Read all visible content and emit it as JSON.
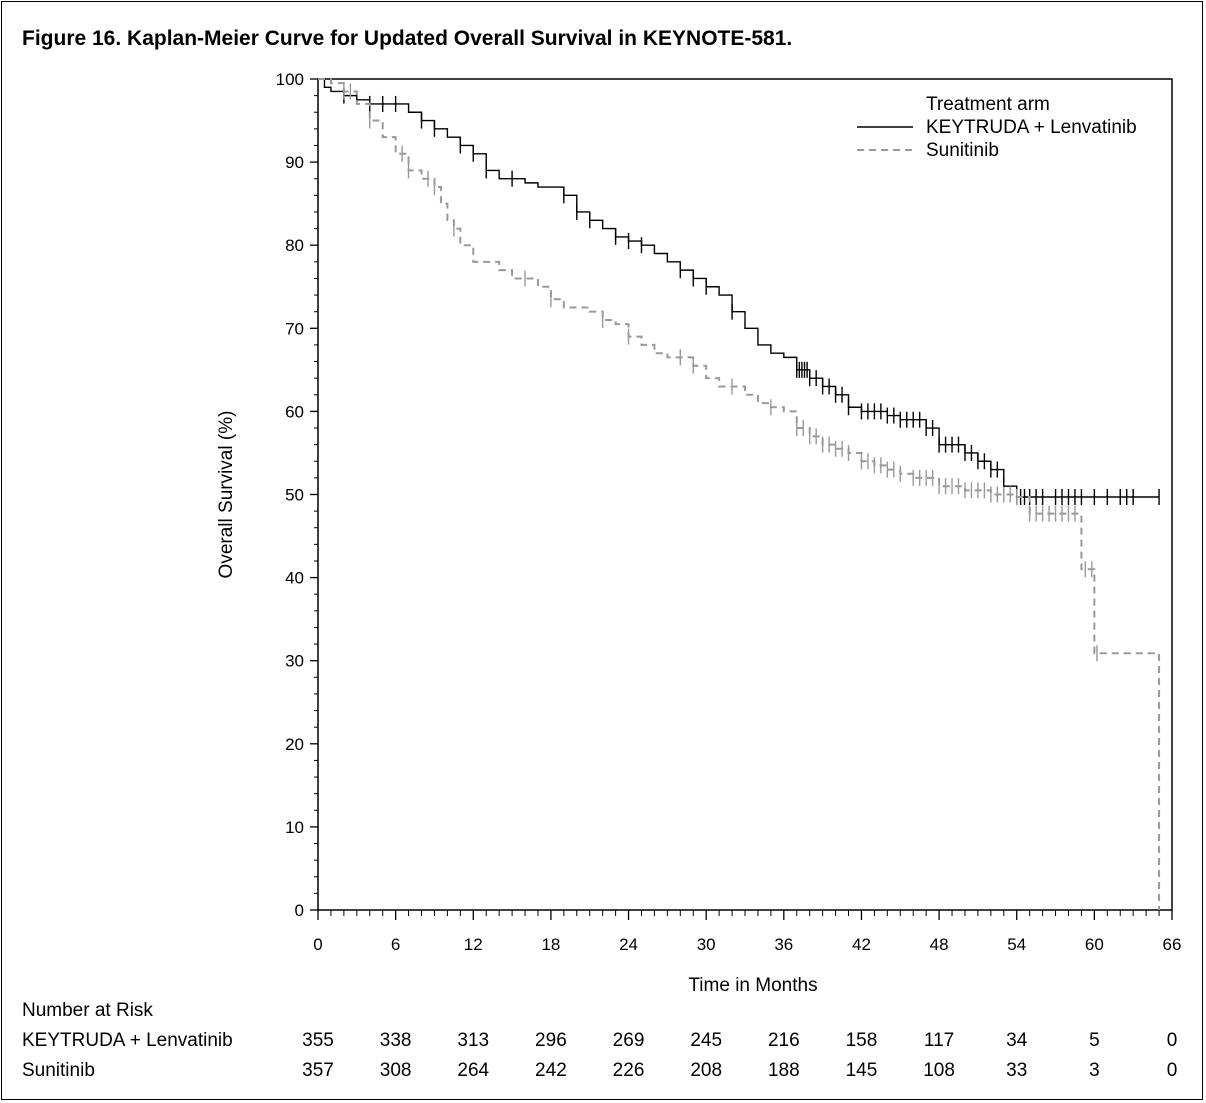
{
  "title": "Figure 16. Kaplan-Meier Curve for Updated Overall Survival in KEYNOTE-581.",
  "chart_data": {
    "type": "line",
    "title": "Figure 16. Kaplan-Meier Curve for Updated Overall Survival in KEYNOTE-581.",
    "xlabel": "Time in Months",
    "ylabel": "Overall Survival (%)",
    "xlim": [
      0,
      66
    ],
    "ylim": [
      0,
      100
    ],
    "x_ticks": [
      "0",
      "6",
      "12",
      "18",
      "24",
      "30",
      "36",
      "42",
      "48",
      "54",
      "60",
      "66"
    ],
    "y_ticks": [
      "0",
      "10",
      "20",
      "30",
      "40",
      "50",
      "60",
      "70",
      "80",
      "90",
      "100"
    ],
    "grid": false,
    "legend": {
      "title": "Treatment arm",
      "placement": "top-right"
    },
    "series": [
      {
        "name": "KEYTRUDA + Lenvatinib",
        "color": "#000000",
        "style": "solid",
        "step_points": [
          [
            0,
            100
          ],
          [
            0.5,
            99
          ],
          [
            1,
            98.5
          ],
          [
            2,
            98
          ],
          [
            3,
            97.5
          ],
          [
            4,
            97
          ],
          [
            6,
            97
          ],
          [
            7,
            96
          ],
          [
            8,
            95
          ],
          [
            9,
            94
          ],
          [
            10,
            93
          ],
          [
            11,
            92
          ],
          [
            12,
            91
          ],
          [
            13,
            89
          ],
          [
            14,
            88
          ],
          [
            16,
            87.5
          ],
          [
            17,
            87
          ],
          [
            19,
            86
          ],
          [
            20,
            84
          ],
          [
            21,
            83
          ],
          [
            22,
            82
          ],
          [
            23,
            81
          ],
          [
            24,
            80.5
          ],
          [
            25,
            80
          ],
          [
            26,
            79
          ],
          [
            27,
            78
          ],
          [
            28,
            77
          ],
          [
            29,
            76
          ],
          [
            30,
            75
          ],
          [
            31,
            74
          ],
          [
            32,
            72
          ],
          [
            33,
            70
          ],
          [
            34,
            68
          ],
          [
            35,
            67
          ],
          [
            36,
            66.5
          ],
          [
            37,
            65
          ],
          [
            38,
            64
          ],
          [
            39,
            63
          ],
          [
            40,
            62
          ],
          [
            41,
            60.5
          ],
          [
            42,
            60
          ],
          [
            44,
            59.5
          ],
          [
            45,
            59
          ],
          [
            47,
            58
          ],
          [
            48,
            56
          ],
          [
            50,
            55
          ],
          [
            51,
            54
          ],
          [
            52,
            53
          ],
          [
            53,
            51
          ],
          [
            54,
            49.7
          ],
          [
            65,
            49.7
          ]
        ],
        "censor_x": [
          2,
          4,
          5,
          6,
          8,
          9,
          11,
          12,
          13,
          15,
          19,
          20,
          21,
          23,
          24,
          25,
          28,
          29,
          30,
          32,
          37,
          37.2,
          37.4,
          37.6,
          37.8,
          38,
          38.5,
          39,
          39.5,
          40,
          40.5,
          41,
          42,
          42.5,
          43,
          43.5,
          44,
          44.5,
          45,
          45.5,
          46,
          46.5,
          47,
          47.5,
          48,
          48.5,
          49,
          49.5,
          50,
          50.5,
          51,
          51.5,
          52,
          52.5,
          53,
          54,
          54.3,
          54.6,
          55,
          55.5,
          56,
          57,
          57.5,
          58,
          58.5,
          59,
          60,
          61,
          62,
          62.5,
          63,
          65
        ]
      },
      {
        "name": "Sunitinib",
        "color": "#999999",
        "style": "dashed",
        "step_points": [
          [
            0,
            100
          ],
          [
            1,
            99.5
          ],
          [
            2,
            98.5
          ],
          [
            3,
            97
          ],
          [
            4,
            95
          ],
          [
            5,
            93
          ],
          [
            6,
            91
          ],
          [
            7,
            89
          ],
          [
            8,
            88
          ],
          [
            9,
            87
          ],
          [
            9.5,
            85
          ],
          [
            10,
            83
          ],
          [
            10.5,
            82
          ],
          [
            11,
            80
          ],
          [
            12,
            78
          ],
          [
            14,
            77
          ],
          [
            15,
            76
          ],
          [
            17,
            75
          ],
          [
            18,
            73.5
          ],
          [
            19,
            72.5
          ],
          [
            21,
            72
          ],
          [
            22,
            71
          ],
          [
            23,
            70.5
          ],
          [
            24,
            69
          ],
          [
            25,
            68
          ],
          [
            26,
            67
          ],
          [
            27,
            66.5
          ],
          [
            29,
            65.5
          ],
          [
            30,
            64
          ],
          [
            31,
            63
          ],
          [
            33,
            62
          ],
          [
            34,
            61
          ],
          [
            35,
            60.5
          ],
          [
            36,
            60
          ],
          [
            37,
            58
          ],
          [
            38,
            57
          ],
          [
            39,
            56
          ],
          [
            40,
            55.5
          ],
          [
            41,
            55
          ],
          [
            42,
            54
          ],
          [
            43,
            53.5
          ],
          [
            44,
            53
          ],
          [
            45,
            52.5
          ],
          [
            46,
            52
          ],
          [
            48,
            51
          ],
          [
            50,
            50.5
          ],
          [
            52,
            50
          ],
          [
            54,
            49.7
          ],
          [
            55,
            47.7
          ],
          [
            59,
            47.7
          ],
          [
            59,
            41
          ],
          [
            60,
            41
          ],
          [
            60,
            30.9
          ],
          [
            65,
            30.9
          ],
          [
            65,
            0
          ]
        ],
        "censor_x": [
          2,
          2.5,
          4,
          6.5,
          7,
          8.5,
          9,
          10.5,
          16,
          18,
          22,
          24,
          28,
          29,
          32,
          35,
          37,
          37.5,
          38,
          38.5,
          39,
          39.5,
          40,
          40.5,
          41,
          42,
          42.5,
          43,
          43.5,
          44,
          44.5,
          45,
          46,
          46.5,
          47,
          47.5,
          48,
          48.5,
          49,
          49.5,
          50,
          50.5,
          51,
          51.5,
          52,
          52.5,
          53,
          53.5,
          54,
          55,
          55.5,
          56,
          56.5,
          57,
          57.5,
          58,
          58.5,
          59.3,
          59.8,
          60.2
        ]
      }
    ],
    "risk_table": {
      "header": "Number at Risk",
      "times": [
        0,
        6,
        12,
        18,
        24,
        30,
        36,
        42,
        48,
        54,
        60,
        66
      ],
      "rows": [
        {
          "label": "KEYTRUDA + Lenvatinib",
          "values": [
            "355",
            "338",
            "313",
            "296",
            "269",
            "245",
            "216",
            "158",
            "117",
            "34",
            "5",
            "0"
          ]
        },
        {
          "label": "Sunitinib",
          "values": [
            "357",
            "308",
            "264",
            "242",
            "226",
            "208",
            "188",
            "145",
            "108",
            "33",
            "3",
            "0"
          ]
        }
      ]
    }
  }
}
